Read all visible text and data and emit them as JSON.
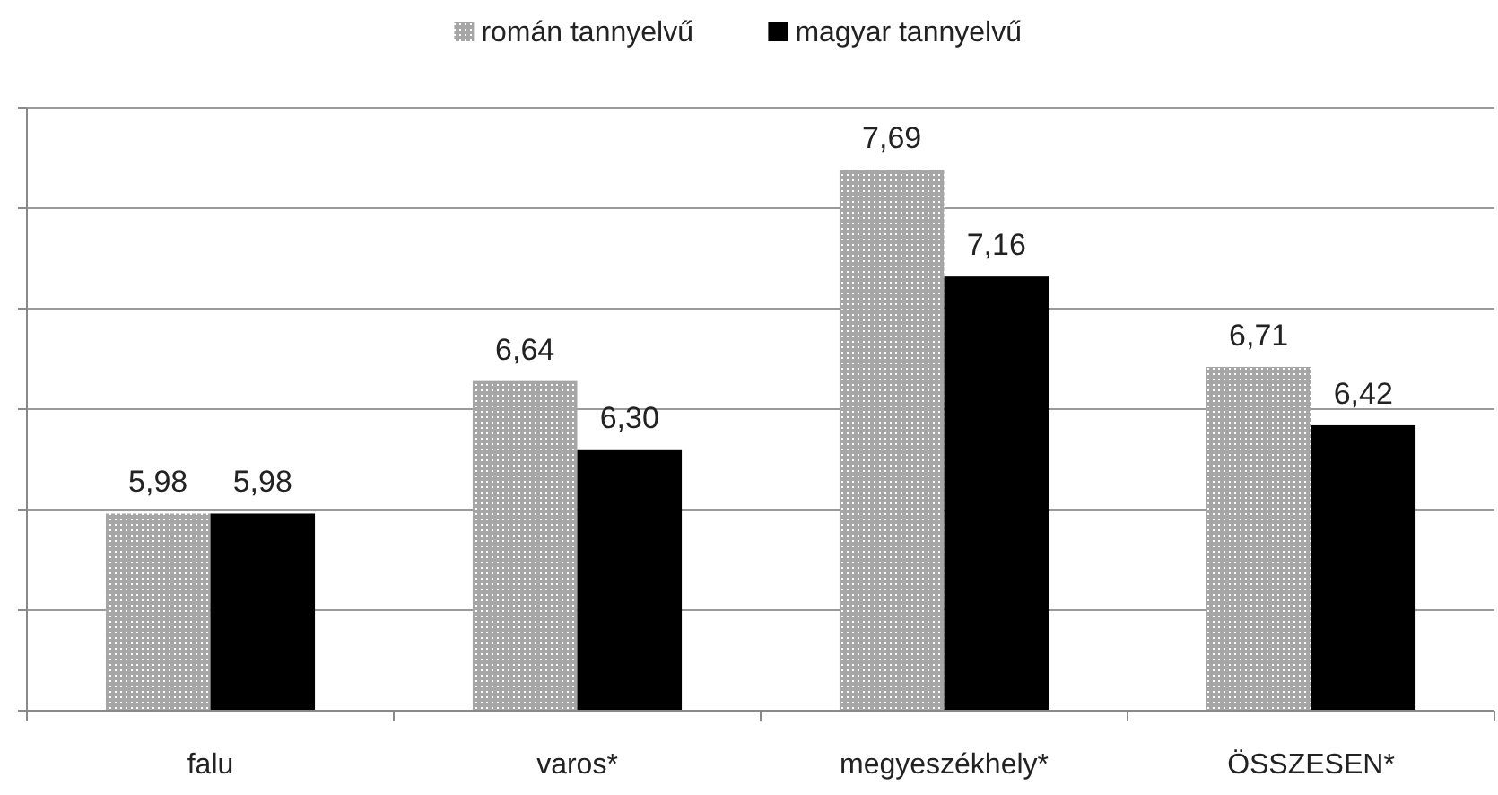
{
  "chart_data": {
    "type": "bar",
    "categories": [
      "falu",
      "varos*",
      "megyeszékhely*",
      "ÖSSZESEN*"
    ],
    "series": [
      {
        "name": "román tannyelvű",
        "color": "#a6a6a6",
        "values": [
          5.98,
          6.64,
          7.69,
          6.71
        ],
        "value_labels": [
          "5,98",
          "6,64",
          "7,69",
          "6,71"
        ]
      },
      {
        "name": "magyar tannyelvű",
        "color": "#000000",
        "values": [
          5.98,
          6.3,
          7.16,
          6.42
        ],
        "value_labels": [
          "5,98",
          "6,30",
          "7,16",
          "6,42"
        ]
      }
    ],
    "ylim": [
      5,
      8
    ],
    "yticks": [
      {
        "value": 5,
        "label": null
      },
      {
        "value": 5.5,
        "label": null
      },
      {
        "value": 6,
        "label": null
      },
      {
        "value": 6.5,
        "label": null
      },
      {
        "value": 7,
        "label": null
      },
      {
        "value": 7.5,
        "label": null
      },
      {
        "value": 8,
        "label": null
      }
    ],
    "tick_labels": "x",
    "grid": "y",
    "legend": "top"
  }
}
